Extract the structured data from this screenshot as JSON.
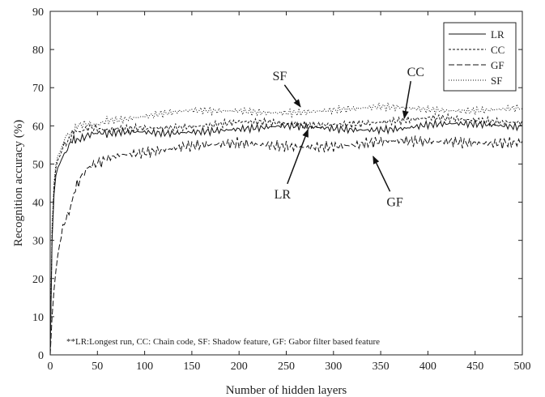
{
  "chart_data": {
    "type": "line",
    "xlabel": "Number of hidden layers",
    "ylabel": "Recognition accuracy (%)",
    "xlim": [
      0,
      500
    ],
    "ylim": [
      0,
      90
    ],
    "xticks": [
      0,
      50,
      100,
      150,
      200,
      250,
      300,
      350,
      400,
      450,
      500
    ],
    "yticks": [
      0,
      10,
      20,
      30,
      40,
      50,
      60,
      70,
      80,
      90
    ],
    "grid": false,
    "legend_position": "top-right",
    "x": [
      0,
      2,
      4,
      6,
      8,
      10,
      15,
      20,
      25,
      30,
      40,
      50,
      60,
      75,
      100,
      125,
      150,
      175,
      200,
      225,
      250,
      275,
      300,
      325,
      350,
      375,
      400,
      425,
      450,
      475,
      500
    ],
    "series": [
      {
        "name": "LR",
        "dash": "solid",
        "color": "#111111",
        "values": [
          0,
          30,
          42,
          47,
          49,
          50,
          53,
          55,
          56,
          57,
          57.5,
          57.5,
          58,
          58,
          58.5,
          58.5,
          59,
          59,
          59,
          59,
          59.5,
          59.5,
          59.5,
          59.5,
          59.5,
          59.5,
          60,
          60,
          60,
          60,
          60
        ]
      },
      {
        "name": "CC",
        "dash": "short",
        "color": "#111111",
        "values": [
          0,
          32,
          44,
          49,
          51,
          52,
          55,
          57,
          58,
          58.5,
          59,
          59,
          59.5,
          59.5,
          60,
          60,
          60,
          60,
          60.5,
          60.5,
          60.5,
          60.5,
          61,
          61,
          61,
          61,
          61.5,
          61.5,
          61.5,
          61.5,
          61.5
        ]
      },
      {
        "name": "GF",
        "dash": "long",
        "color": "#111111",
        "values": [
          0,
          10,
          17,
          22,
          26,
          29,
          34,
          38,
          42,
          45,
          48.5,
          50.5,
          52,
          53,
          53.5,
          54,
          54.5,
          54.5,
          55,
          55,
          55,
          55,
          55,
          55,
          55.5,
          55.5,
          55.5,
          56,
          56,
          56,
          56
        ]
      },
      {
        "name": "SF",
        "dash": "dot",
        "color": "#111111",
        "values": [
          0,
          33,
          45,
          50,
          52,
          53,
          56,
          58,
          59,
          59.5,
          60.5,
          61,
          61.5,
          62,
          62.5,
          63,
          63.5,
          63.5,
          64,
          64,
          64,
          64,
          64,
          64,
          64.5,
          64.5,
          64.5,
          64.5,
          64.5,
          64.5,
          64.5
        ]
      }
    ],
    "annotations": [
      {
        "text": "SF",
        "text_x": 243,
        "text_y": 72,
        "arrow_to_x": 265,
        "arrow_to_y": 65
      },
      {
        "text": "CC",
        "text_x": 387,
        "text_y": 73,
        "arrow_to_x": 375,
        "arrow_to_y": 62
      },
      {
        "text": "LR",
        "text_x": 246,
        "text_y": 41,
        "arrow_to_x": 273,
        "arrow_to_y": 59
      },
      {
        "text": "GF",
        "text_x": 365,
        "text_y": 39,
        "arrow_to_x": 342,
        "arrow_to_y": 52
      }
    ],
    "note": "**LR:Longest run, CC: Chain code, SF: Shadow feature, GF: Gabor filter based feature"
  }
}
